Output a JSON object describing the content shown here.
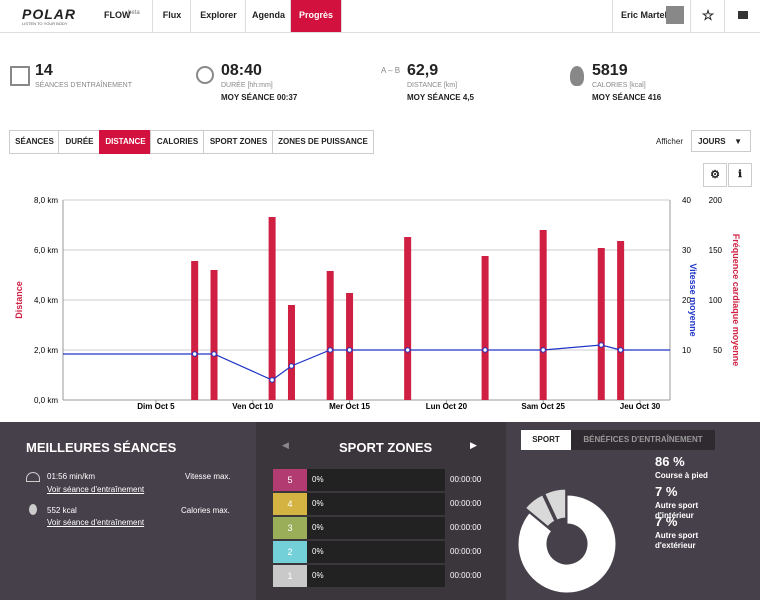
{
  "nav": {
    "logo": "POLAR",
    "tagline": "LISTEN TO YOUR BODY",
    "product": "FLOW",
    "badge": "beta",
    "menu": [
      "Flux",
      "Explorer",
      "Agenda",
      "Progrès"
    ],
    "user": "Eric Martel"
  },
  "stats": [
    {
      "value": "14",
      "label": "SÉANCES D'ENTRAÎNEMENT"
    },
    {
      "value": "08:40",
      "label": "DURÉE [hh:mm]",
      "average": "MOY SÉANCE 00:37"
    },
    {
      "value": "62,9",
      "label": "DISTANCE [km]",
      "average": "MOY SÉANCE 4,5"
    },
    {
      "value": "5819",
      "label": "CALORIES [kcal]",
      "average": "MOY SÉANCE 416"
    }
  ],
  "tabs": [
    "SÉANCES",
    "DURÉE",
    "DISTANCE",
    "CALORIES",
    "SPORT ZONES",
    "ZONES DE PUISSANCE"
  ],
  "display": {
    "label": "Afficher",
    "option": "JOURS"
  },
  "chart_data": [
    {
      "type": "bar",
      "x": [
        7,
        8,
        11,
        12,
        14,
        15,
        18,
        22,
        25,
        28,
        29
      ],
      "xlim": [
        0.2,
        31.55
      ],
      "xticks": [
        {
          "value": 5,
          "label": "Dim Oct 5"
        },
        {
          "value": 10,
          "label": "Ven Oct 10"
        },
        {
          "value": 15,
          "label": "Mer Oct 15"
        },
        {
          "value": 20,
          "label": "Lun Oct 20"
        },
        {
          "value": 25,
          "label": "Sam Oct 25"
        },
        {
          "value": 30,
          "label": "Jeu Oct 30"
        }
      ],
      "ylim": [
        0,
        8
      ],
      "yticks": [
        {
          "value": 0,
          "label": "0,0 km"
        },
        {
          "value": 2,
          "label": "2,0 km"
        },
        {
          "value": 4,
          "label": "4,0 km"
        },
        {
          "value": 6,
          "label": "6,0 km"
        },
        {
          "value": 8,
          "label": "8,0 km"
        }
      ],
      "y2lim": [
        0,
        40
      ],
      "y2ticks": [
        10,
        20,
        30,
        40
      ],
      "y3lim": [
        0,
        200
      ],
      "y3ticks": [
        50,
        100,
        150,
        200
      ],
      "y3label": "Fréquence cardiaque moyenne",
      "grid": true,
      "series": [
        {
          "name": "Distance",
          "color": "#cf1f42",
          "values": [
            5.56,
            5.2,
            7.32,
            3.8,
            5.16,
            4.28,
            6.52,
            5.76,
            6.8,
            6.08,
            6.36
          ]
        },
        {
          "name": "Vitesse moyenne",
          "type": "line",
          "axis": "y2",
          "color": "#1f35c8",
          "values": [
            9.2,
            9.2,
            4,
            6.8,
            10,
            10,
            10,
            10,
            10,
            11,
            10
          ]
        }
      ]
    },
    {
      "type": "pie",
      "categories": [
        "Course à pied",
        "Autre sport d'intérieur",
        "Autre sport d'extérieur"
      ],
      "values": [
        86,
        7,
        7
      ],
      "value_labels": [
        "86 %",
        "7 %",
        "7 %"
      ],
      "colors": [
        "#ffffff",
        "#d9d9d9",
        "#d9d9d9"
      ]
    }
  ],
  "best": {
    "title": "MEILLEURES SÉANCES",
    "items": [
      {
        "value": "01:56 min/km",
        "label": "Vitesse max.",
        "link": "Voir séance d'entraînement"
      },
      {
        "value": "552 kcal",
        "label": "Calories max.",
        "link": "Voir séance d'entraînement"
      }
    ]
  },
  "zones": {
    "title": "SPORT ZONES",
    "rows": [
      {
        "zone": "5",
        "color": "#b23b72",
        "share": "0%",
        "time": "00:00:00"
      },
      {
        "zone": "4",
        "color": "#d4b343",
        "share": "0%",
        "time": "00:00:00"
      },
      {
        "zone": "3",
        "color": "#9aae5a",
        "share": "0%",
        "time": "00:00:00"
      },
      {
        "zone": "2",
        "color": "#74d0d8",
        "share": "0%",
        "time": "00:00:00"
      },
      {
        "zone": "1",
        "color": "#c9c9c9",
        "share": "0%",
        "time": "00:00:00"
      }
    ]
  },
  "sport_tabs": [
    "SPORT",
    "BÉNÉFICES D'ENTRAÎNEMENT"
  ]
}
